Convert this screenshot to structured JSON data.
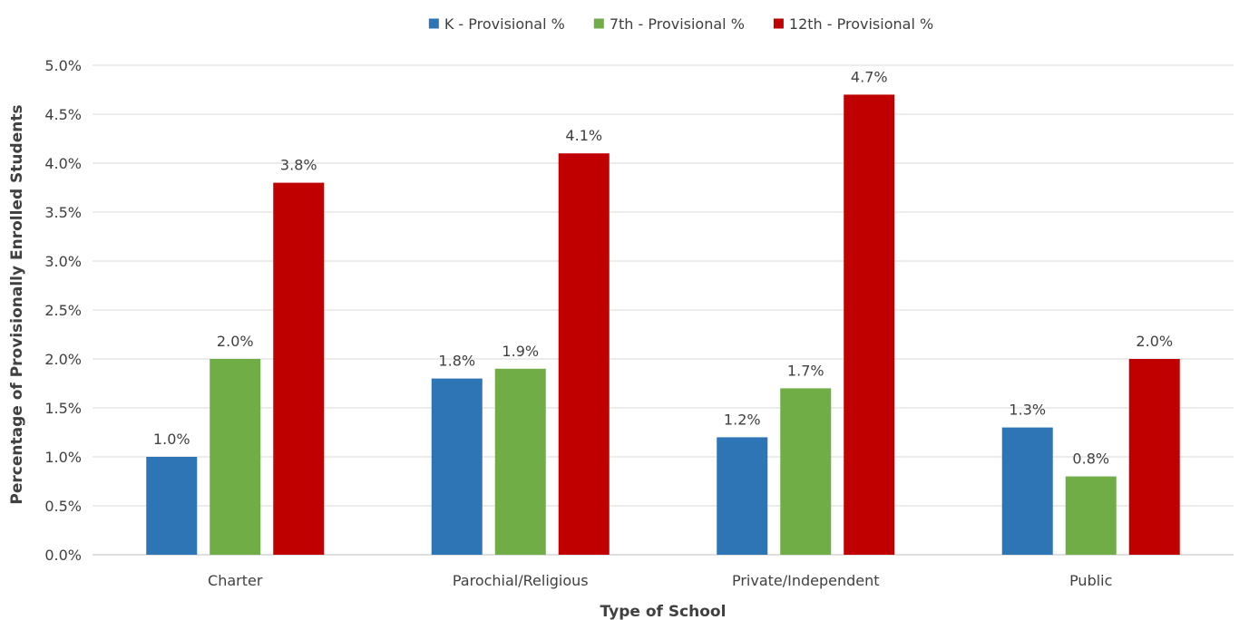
{
  "chart_data": {
    "type": "bar",
    "categories": [
      "Charter",
      "Parochial/Religious",
      "Private/Independent",
      "Public"
    ],
    "series": [
      {
        "name": "K - Provisional %",
        "color": "#2e75b6",
        "values": [
          1.0,
          1.8,
          1.2,
          1.3
        ],
        "labels": [
          "1.0%",
          "1.8%",
          "1.2%",
          "1.3%"
        ]
      },
      {
        "name": "7th - Provisional %",
        "color": "#70ad47",
        "values": [
          2.0,
          1.9,
          1.7,
          0.8
        ],
        "labels": [
          "2.0%",
          "1.9%",
          "1.7%",
          "0.8%"
        ]
      },
      {
        "name": "12th - Provisional %",
        "color": "#c00000",
        "values": [
          3.8,
          4.1,
          4.7,
          2.0
        ],
        "labels": [
          "3.8%",
          "4.1%",
          "4.7%",
          "2.0%"
        ]
      }
    ],
    "xlabel": "Type of School",
    "ylabel": "Percentage of Provisionally Enrolled Students",
    "ylim": [
      0,
      5.0
    ],
    "yticks": [
      "0.0%",
      "0.5%",
      "1.0%",
      "1.5%",
      "2.0%",
      "2.5%",
      "3.0%",
      "3.5%",
      "4.0%",
      "4.5%",
      "5.0%"
    ],
    "grid": true,
    "legend_position": "top"
  }
}
